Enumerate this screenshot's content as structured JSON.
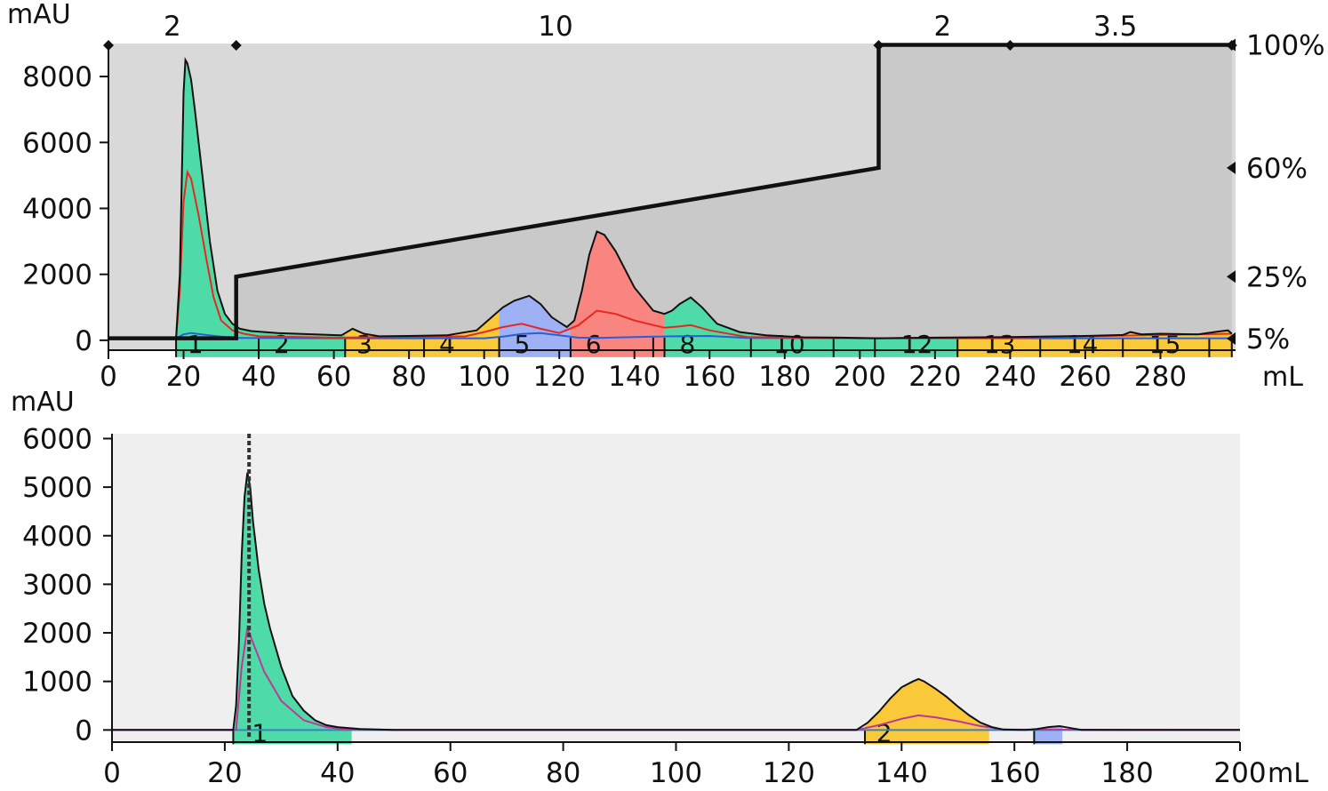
{
  "colors": {
    "plot_bg_top": "#d9d9d9",
    "gradient_fill": "#c9c9c9",
    "plot_bg_bottom": "#efefef",
    "green": "#4fdba8",
    "yellow": "#f9c93a",
    "blue": "#9fb1f5",
    "red": "#f8857f",
    "uv_line": "#111111",
    "red_trace": "#e8271f",
    "blue_trace": "#2a5ed8",
    "magenta_trace": "#c0379a",
    "baseline_blue": "#3a7fc0"
  },
  "chart_data": [
    {
      "type": "area",
      "ylabel": "mAU",
      "xlabel": "mL",
      "xlim": [
        0,
        300
      ],
      "ylim": [
        -300,
        9000
      ],
      "x_ticks": [
        "0",
        "20",
        "40",
        "60",
        "80",
        "100",
        "120",
        "140",
        "160",
        "180",
        "200",
        "220",
        "240",
        "260",
        "280"
      ],
      "y_ticks": [
        "0",
        "2000",
        "4000",
        "6000",
        "8000"
      ],
      "segment_labels": [
        {
          "x": 17,
          "text": "2"
        },
        {
          "x": 119,
          "text": "10"
        },
        {
          "x": 222,
          "text": "2"
        },
        {
          "x": 268,
          "text": "3.5"
        }
      ],
      "segment_markers": [
        0,
        34,
        205,
        240,
        299
      ],
      "gradient_percent_labels": [
        {
          "value": 100,
          "text": "100%"
        },
        {
          "value": 60,
          "text": "60%"
        },
        {
          "value": 25,
          "text": "25%"
        },
        {
          "value": 5,
          "text": "5%"
        }
      ],
      "gradient_percent_positions_mAU": [
        8960,
        5230,
        1930,
        50
      ],
      "gradient": {
        "x": [
          0,
          34,
          34,
          205,
          205,
          299
        ],
        "y": [
          60,
          60,
          1930,
          5230,
          8960,
          8960
        ]
      },
      "uv_trace": {
        "x": [
          0,
          18,
          19,
          20,
          20.5,
          21,
          22,
          23,
          25,
          27,
          29,
          31,
          33,
          35,
          38,
          45,
          55,
          62,
          65,
          68,
          72,
          80,
          90,
          98,
          102,
          105,
          108,
          112,
          115,
          118,
          122,
          124,
          126,
          128,
          130,
          132,
          135,
          140,
          145,
          148,
          150,
          152,
          155,
          158,
          162,
          168,
          175,
          185,
          195,
          205,
          220,
          240,
          260,
          270,
          272,
          275,
          280,
          290,
          295,
          298,
          299
        ],
        "y": [
          60,
          60,
          2000,
          7500,
          8500,
          8400,
          7900,
          7000,
          5000,
          3000,
          1500,
          800,
          500,
          350,
          280,
          220,
          180,
          150,
          350,
          200,
          120,
          130,
          150,
          300,
          700,
          1000,
          1200,
          1350,
          1100,
          700,
          400,
          600,
          1500,
          2600,
          3300,
          3200,
          2700,
          1600,
          900,
          800,
          900,
          1100,
          1300,
          1000,
          500,
          250,
          150,
          90,
          80,
          60,
          80,
          100,
          130,
          160,
          250,
          180,
          200,
          180,
          260,
          300,
          200
        ]
      },
      "red_trace": {
        "x": [
          0,
          18,
          19,
          20,
          21,
          22,
          24,
          26,
          28,
          30,
          33,
          36,
          40,
          60,
          95,
          100,
          105,
          110,
          115,
          120,
          125,
          130,
          135,
          140,
          148,
          152,
          155,
          160,
          170,
          200,
          240,
          299
        ],
        "y": [
          60,
          60,
          1500,
          4200,
          5100,
          4900,
          3800,
          2500,
          1300,
          600,
          300,
          200,
          120,
          80,
          120,
          250,
          400,
          500,
          350,
          220,
          450,
          900,
          800,
          600,
          380,
          420,
          460,
          300,
          100,
          60,
          80,
          200
        ]
      },
      "blue_trace": {
        "x": [
          0,
          18,
          20,
          22,
          26,
          30,
          35,
          60,
          100,
          105,
          110,
          115,
          120,
          125,
          130,
          140,
          150,
          160,
          170,
          200,
          299
        ],
        "y": [
          60,
          60,
          180,
          220,
          160,
          110,
          70,
          60,
          60,
          110,
          190,
          220,
          150,
          80,
          70,
          100,
          120,
          130,
          70,
          60,
          60
        ]
      },
      "fraction_colors": [
        "green",
        "green",
        "yellow",
        "yellow",
        "blue",
        "red",
        "red",
        "green",
        "green",
        "green",
        "green",
        "yellow",
        "yellow",
        "yellow",
        "yellow",
        "yellow"
      ],
      "fraction_bounds": [
        18,
        40,
        63,
        84,
        104,
        123,
        145,
        148,
        171,
        193,
        204,
        226,
        248,
        270,
        293,
        299
      ],
      "fraction_labels": [
        {
          "x": 21,
          "text": "1"
        },
        {
          "x": 44,
          "text": "2"
        },
        {
          "x": 66,
          "text": "3"
        },
        {
          "x": 88,
          "text": "4"
        },
        {
          "x": 108,
          "text": "5"
        },
        {
          "x": 127,
          "text": "6"
        },
        {
          "x": 152,
          "text": "8"
        },
        {
          "x": 177,
          "text": "10"
        },
        {
          "x": 211,
          "text": "12"
        },
        {
          "x": 233,
          "text": "13"
        },
        {
          "x": 255,
          "text": "14"
        },
        {
          "x": 277,
          "text": "15"
        }
      ]
    },
    {
      "type": "area",
      "ylabel": "mAU",
      "xlabel": "mL",
      "xlim": [
        0,
        200
      ],
      "ylim": [
        -250,
        6100
      ],
      "x_ticks": [
        "0",
        "20",
        "40",
        "60",
        "80",
        "100",
        "120",
        "140",
        "160",
        "180",
        "200"
      ],
      "y_ticks": [
        "0",
        "1000",
        "2000",
        "3000",
        "4000",
        "5000",
        "6000"
      ],
      "dashed_marker_x": 24.3,
      "uv_trace": {
        "x": [
          0,
          21.5,
          22,
          22.5,
          23,
          23.5,
          24,
          24.5,
          25,
          26,
          27,
          28,
          30,
          32,
          34,
          36,
          38,
          40,
          44,
          50,
          132,
          134,
          136,
          138,
          140,
          142,
          143,
          144,
          146,
          148,
          150,
          152,
          154,
          156,
          158,
          162,
          164,
          166,
          168,
          170,
          172,
          200
        ],
        "y": [
          0,
          0,
          500,
          1800,
          3600,
          4800,
          5300,
          5000,
          4300,
          3300,
          2600,
          2100,
          1300,
          700,
          400,
          200,
          100,
          60,
          20,
          0,
          0,
          150,
          380,
          650,
          880,
          1000,
          1050,
          1000,
          850,
          680,
          480,
          300,
          150,
          60,
          10,
          0,
          20,
          60,
          80,
          40,
          0,
          0
        ]
      },
      "magenta_trace": {
        "x": [
          0,
          22,
          23,
          24,
          25,
          27,
          30,
          34,
          38,
          42,
          50,
          132,
          136,
          140,
          143,
          146,
          150,
          154,
          158,
          200
        ],
        "y": [
          0,
          0,
          1300,
          2100,
          1800,
          1200,
          600,
          200,
          60,
          10,
          0,
          0,
          100,
          230,
          300,
          260,
          180,
          80,
          10,
          0
        ]
      },
      "fraction_colors": [
        "green",
        "yellow",
        "blue"
      ],
      "fraction_bounds": [
        [
          21.5,
          42.5
        ],
        [
          133.5,
          155.5
        ],
        [
          163.5,
          168.5
        ]
      ],
      "fraction_labels": [
        {
          "x": 24.8,
          "text": "1"
        },
        {
          "x": 135.5,
          "text": "2"
        }
      ]
    }
  ]
}
